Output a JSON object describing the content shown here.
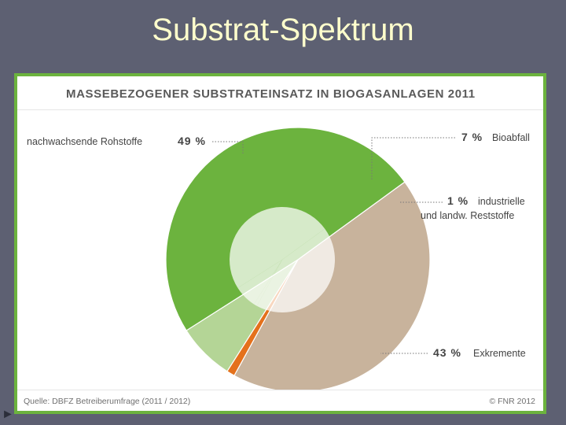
{
  "slide": {
    "title": "Substrat-Spektrum",
    "bullet": "►"
  },
  "figure": {
    "source": "Quelle: DBFZ Betreiberumfrage (2011 / 2012)",
    "copyright": "© FNR 2012"
  },
  "colors": {
    "background": "#5d6072",
    "title": "#ffffcc",
    "frame": "#6cb33e",
    "nawaro": "#6cb33e",
    "bioabfall": "#b4d596",
    "reststoffe": "#e4711c",
    "exkremente": "#c8b39c"
  },
  "chart_data": {
    "type": "pie",
    "title": "MASSEBEZOGENER SUBSTRATEINSATZ  IN BIOGASANLAGEN 2011",
    "start_angle_deg": 36,
    "slices": [
      {
        "label": "nachwachsende Rohstoffe",
        "value": 49,
        "value_label": "49 %",
        "color": "#6cb33e",
        "label_side": "left"
      },
      {
        "label": "Bioabfall",
        "value": 7,
        "value_label": "7 %",
        "color": "#b4d596",
        "label_side": "right"
      },
      {
        "label": "industrielle",
        "label2": "und landw. Reststoffe",
        "value": 1,
        "value_label": "1 %",
        "color": "#e4711c",
        "label_side": "right"
      },
      {
        "label": "Exkremente",
        "value": 43,
        "value_label": "43 %",
        "color": "#c8b39c",
        "label_side": "right"
      }
    ]
  }
}
